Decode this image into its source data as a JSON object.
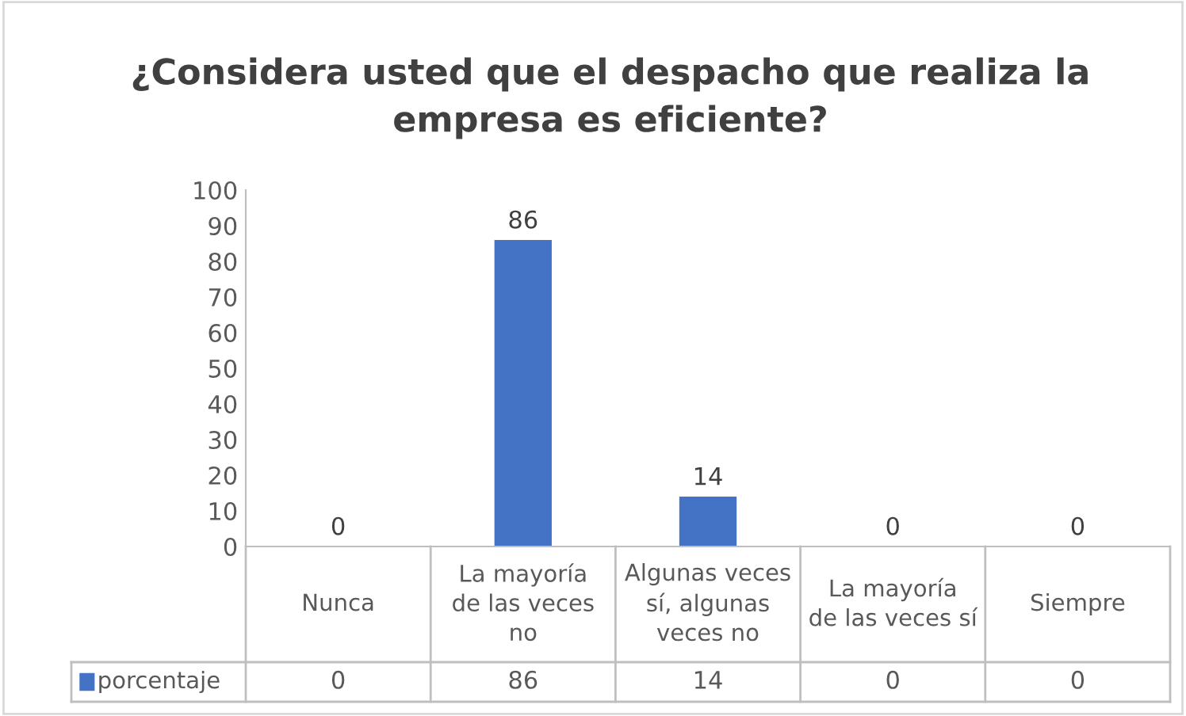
{
  "chart_data": {
    "type": "bar",
    "title": "¿Considera usted que el despacho que realiza la\nempresa es eficiente?",
    "categories": [
      "Nunca",
      "La mayoría\nde las veces\nno",
      "Algunas veces\nsí, algunas\nveces no",
      "La mayoría\nde las veces sí",
      "Siempre"
    ],
    "series": [
      {
        "name": "porcentaje",
        "color": "#4472c4",
        "values": [
          0,
          86,
          14,
          0,
          0
        ],
        "value_labels": [
          "0",
          "86",
          "14",
          "0",
          "0"
        ]
      }
    ],
    "ylim": [
      0,
      100
    ],
    "yticks": [
      0,
      10,
      20,
      30,
      40,
      50,
      60,
      70,
      80,
      90,
      100
    ],
    "annotations": [
      "0",
      "86",
      "14",
      "0",
      "0"
    ],
    "data_labels": true,
    "grid": false,
    "legend": "bottom"
  }
}
